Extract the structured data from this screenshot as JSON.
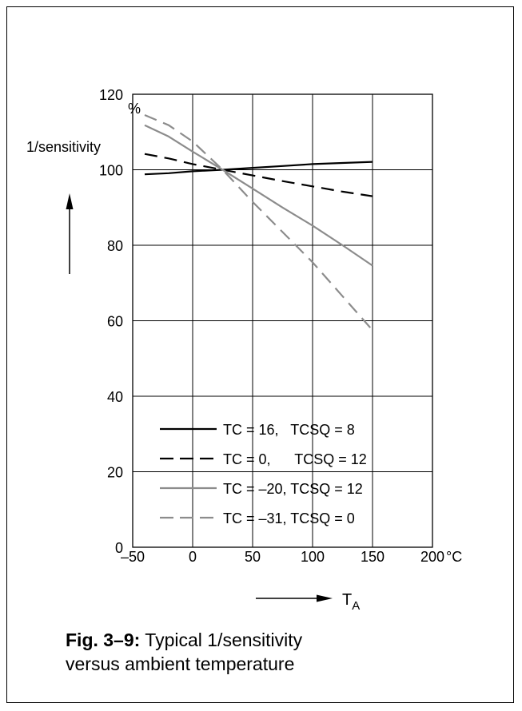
{
  "caption": {
    "label": "Fig. 3–9:",
    "text_line1": "Typical 1/sensitivity",
    "text_line2": "versus ambient temperature"
  },
  "chart_data": {
    "type": "line",
    "ylabel": "1/sensitivity",
    "yunit": "%",
    "xlabel": "T",
    "xlabel_sub": "A",
    "xunit": "°C",
    "xlim": [
      -50,
      200
    ],
    "ylim": [
      0,
      120
    ],
    "xticks": [
      -50,
      0,
      50,
      100,
      150,
      200
    ],
    "xtick_labels": [
      "–50",
      "0",
      "50",
      "100",
      "150",
      "200"
    ],
    "yticks": [
      0,
      20,
      40,
      60,
      80,
      100,
      120
    ],
    "ytick_labels": [
      "0",
      "20",
      "40",
      "60",
      "80",
      "100",
      "120"
    ],
    "grid": true,
    "legend_position": "bottom-center",
    "series": [
      {
        "name": "TC = 16,   TCSQ = 8",
        "color": "#000000",
        "dash": "solid",
        "x": [
          -40,
          -20,
          0,
          25,
          50,
          75,
          100,
          125,
          150
        ],
        "y": [
          98.8,
          99.1,
          99.6,
          100,
          100.5,
          101,
          101.5,
          101.8,
          102.1
        ]
      },
      {
        "name": "TC = 0,      TCSQ = 12",
        "color": "#000000",
        "dash": "dashed",
        "x": [
          -40,
          -20,
          0,
          25,
          50,
          75,
          100,
          125,
          150
        ],
        "y": [
          104.2,
          103.0,
          101.5,
          100,
          98.5,
          97,
          95.6,
          94.2,
          93.0
        ]
      },
      {
        "name": "TC = –20, TCSQ = 12",
        "color": "#8c8c8c",
        "dash": "solid",
        "x": [
          -40,
          -20,
          0,
          25,
          50,
          75,
          100,
          125,
          150
        ],
        "y": [
          111.8,
          108.8,
          104.8,
          100,
          95,
          90,
          85.2,
          80,
          74.6
        ]
      },
      {
        "name": "TC = –31, TCSQ = 0",
        "color": "#8c8c8c",
        "dash": "dashed",
        "x": [
          -40,
          -20,
          0,
          25,
          50,
          75,
          100,
          125,
          150
        ],
        "y": [
          114.5,
          111.8,
          107.5,
          100,
          91.5,
          83.5,
          75.5,
          66.5,
          57.5
        ]
      }
    ]
  }
}
